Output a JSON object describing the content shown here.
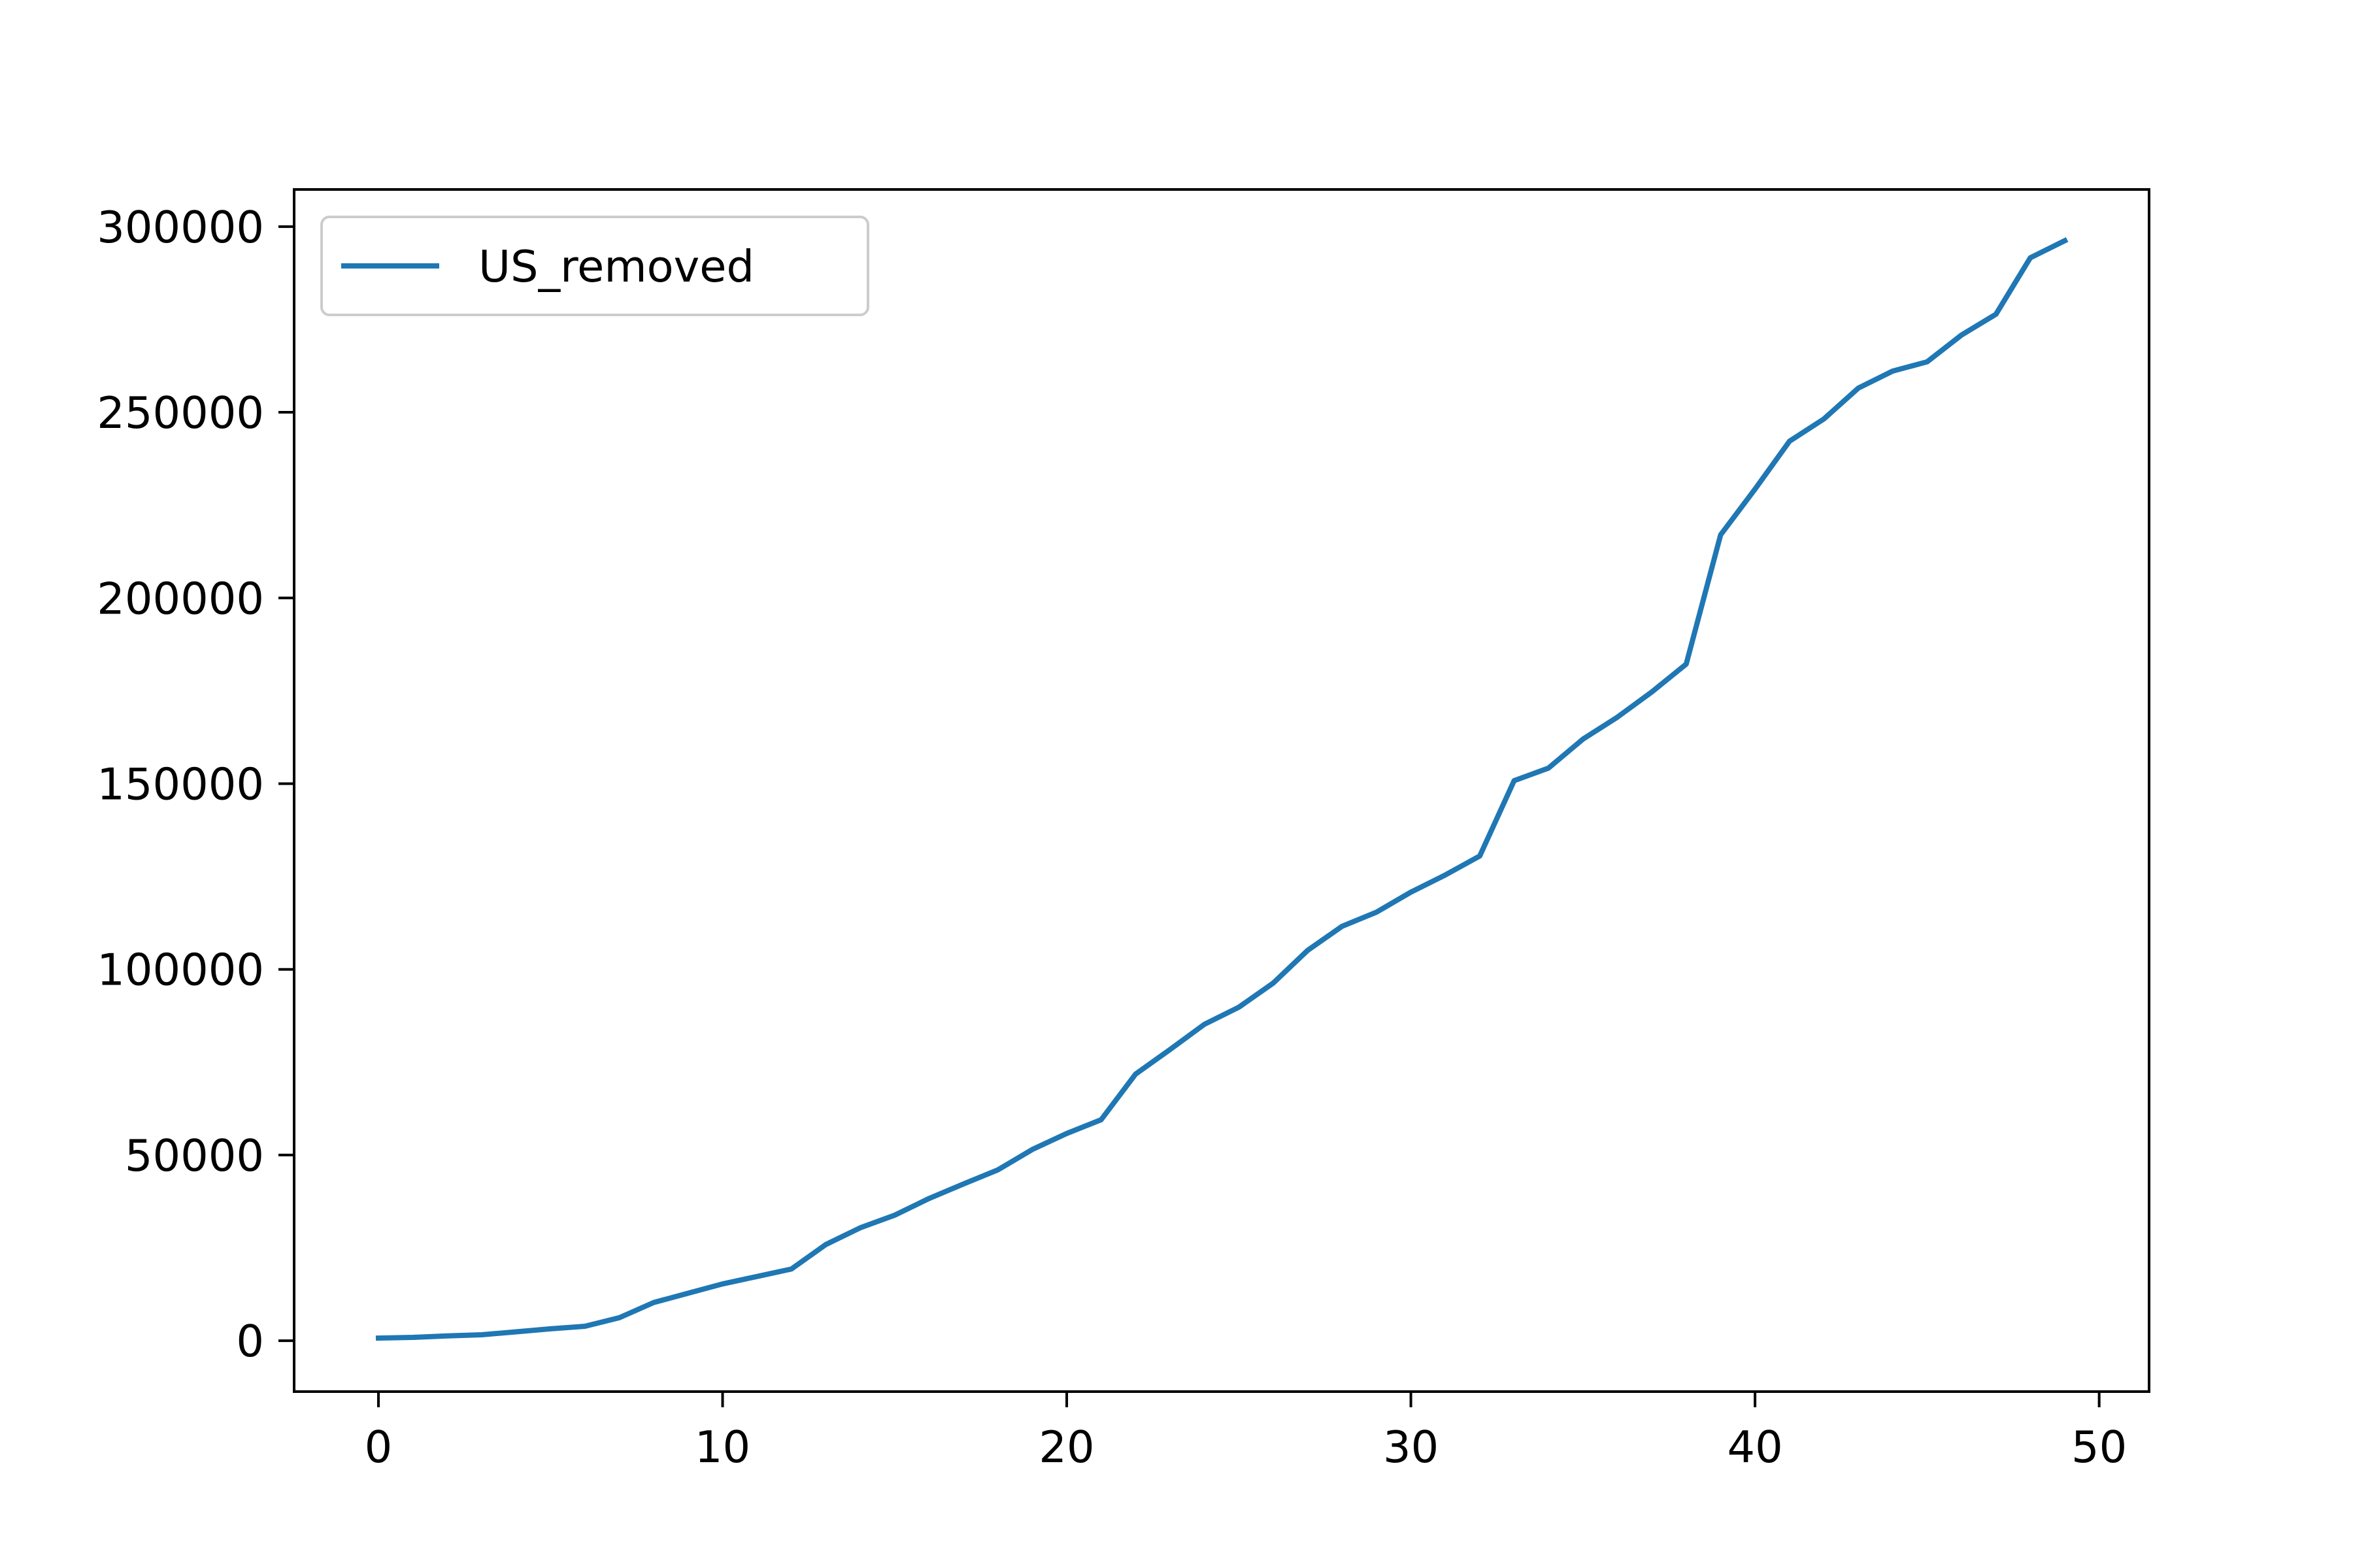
{
  "chart_data": {
    "type": "line",
    "title": "",
    "xlabel": "",
    "ylabel": "",
    "xlim": [
      -2.45,
      51.45
    ],
    "ylim": [
      -13700,
      310000
    ],
    "x_ticks": [
      0,
      10,
      20,
      30,
      40,
      50
    ],
    "x_tick_labels": [
      "0",
      "10",
      "20",
      "30",
      "40",
      "50"
    ],
    "y_ticks": [
      0,
      50000,
      100000,
      150000,
      200000,
      250000,
      300000
    ],
    "y_tick_labels": [
      "0",
      "50000",
      "100000",
      "150000",
      "200000",
      "250000",
      "300000"
    ],
    "grid": false,
    "legend": {
      "position": "top-left",
      "entries": [
        "US_removed"
      ]
    },
    "series": [
      {
        "name": "US_removed",
        "color": "#1f77b4",
        "x": [
          0,
          1,
          2,
          3,
          4,
          5,
          6,
          7,
          8,
          9,
          10,
          11,
          12,
          13,
          14,
          15,
          16,
          17,
          18,
          19,
          20,
          21,
          22,
          23,
          24,
          25,
          26,
          27,
          28,
          29,
          30,
          31,
          32,
          33,
          34,
          35,
          36,
          37,
          38,
          39,
          40,
          41,
          42,
          43,
          44,
          45,
          46,
          47,
          48,
          49
        ],
        "values": [
          700,
          900,
          1300,
          1600,
          2400,
          3200,
          3900,
          6200,
          10300,
          12800,
          15300,
          17300,
          19300,
          25900,
          30400,
          33800,
          38300,
          42200,
          46000,
          51500,
          55800,
          59500,
          71800,
          78400,
          85200,
          89800,
          96300,
          105100,
          111600,
          115400,
          120800,
          125400,
          130500,
          150800,
          154200,
          162000,
          167900,
          174700,
          182200,
          217000,
          229300,
          242200,
          248200,
          256500,
          261100,
          263600,
          270800,
          276400,
          291600,
          296200
        ]
      }
    ]
  }
}
